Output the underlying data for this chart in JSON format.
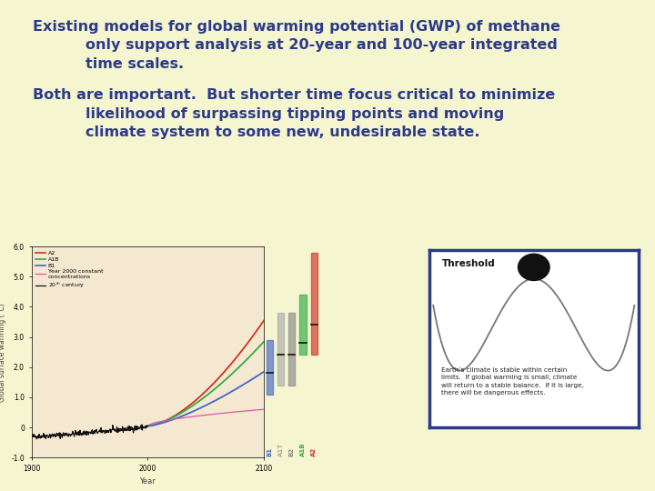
{
  "background_color": "#f5f5d0",
  "text_color": "#2b3a8a",
  "title_line1": "Existing models for global warming potential (GWP) of methane",
  "title_line2": "only support analysis at 20-year and 100-year integrated",
  "title_line3": "time scales.",
  "body_line1": "Both are important.  But shorter time focus critical to minimize",
  "body_line2": "likelihood of surpassing tipping points and moving",
  "body_line3": "climate system to some new, undesirable state.",
  "chart_bg": "#f5e8d0",
  "chart_ylabel": "Global surface warming (°C)",
  "chart_xlabel": "Year",
  "threshold_title": "Threshold",
  "threshold_text": "Earth’s climate is stable within certain\nlimits.  If global warming is small, climate\nwill return to a stable balance.  If it is large,\nthere will be dangerous effects.",
  "threshold_box_color": "#2b3a8a"
}
